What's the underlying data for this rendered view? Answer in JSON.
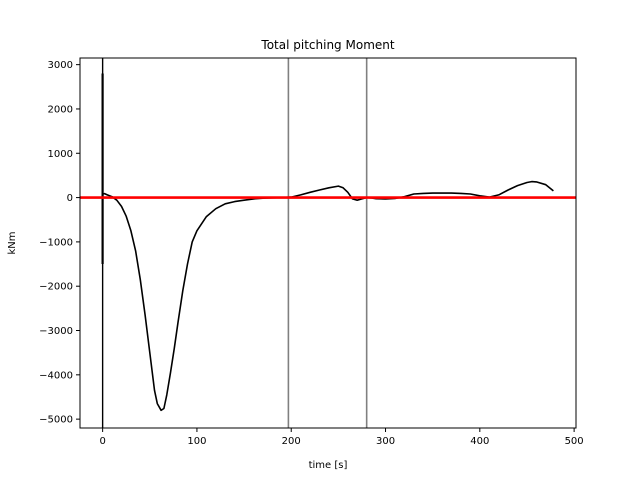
{
  "chart_data": {
    "type": "line",
    "title": "Total pitching Moment",
    "xlabel": "time [s]",
    "ylabel": "kNm",
    "xlim": [
      -24,
      502
    ],
    "ylim": [
      -5200,
      3150
    ],
    "xticks": [
      0,
      100,
      200,
      300,
      400,
      500
    ],
    "yticks": [
      -5000,
      -4000,
      -3000,
      -2000,
      -1000,
      0,
      1000,
      2000,
      3000
    ],
    "grid": false,
    "series": [
      {
        "color": "#000000",
        "x": [
          0,
          2,
          5,
          10,
          15,
          20,
          25,
          30,
          35,
          40,
          45,
          50,
          55,
          58,
          62,
          65,
          68,
          72,
          76,
          80,
          85,
          90,
          95,
          100,
          110,
          120,
          130,
          140,
          150,
          160,
          170,
          180,
          190,
          200,
          210,
          220,
          230,
          240,
          250,
          255,
          260,
          265,
          270,
          275,
          280,
          285,
          290,
          300,
          310,
          320,
          330,
          340,
          350,
          360,
          370,
          380,
          390,
          400,
          410,
          420,
          430,
          440,
          450,
          455,
          460,
          470,
          478
        ],
        "y": [
          80,
          90,
          60,
          20,
          -60,
          -200,
          -420,
          -750,
          -1200,
          -1850,
          -2650,
          -3500,
          -4350,
          -4650,
          -4800,
          -4760,
          -4450,
          -3950,
          -3400,
          -2800,
          -2100,
          -1500,
          -1000,
          -750,
          -430,
          -250,
          -140,
          -90,
          -60,
          -30,
          -15,
          -5,
          0,
          10,
          60,
          120,
          170,
          220,
          260,
          220,
          120,
          -30,
          -60,
          -30,
          0,
          -10,
          -25,
          -30,
          -20,
          20,
          80,
          95,
          100,
          102,
          100,
          95,
          80,
          40,
          10,
          60,
          170,
          270,
          340,
          360,
          355,
          290,
          150
        ]
      },
      {
        "color": "#000000",
        "x": [
          0,
          0
        ],
        "y": [
          -1500,
          2800
        ]
      }
    ],
    "reference_lines": {
      "horizontal": [
        {
          "y": 0,
          "color": "#ff0000"
        }
      ],
      "vertical": [
        {
          "x": 0,
          "color": "#000000"
        },
        {
          "x": 197,
          "color": "#808080"
        },
        {
          "x": 280,
          "color": "#808080"
        }
      ]
    }
  }
}
